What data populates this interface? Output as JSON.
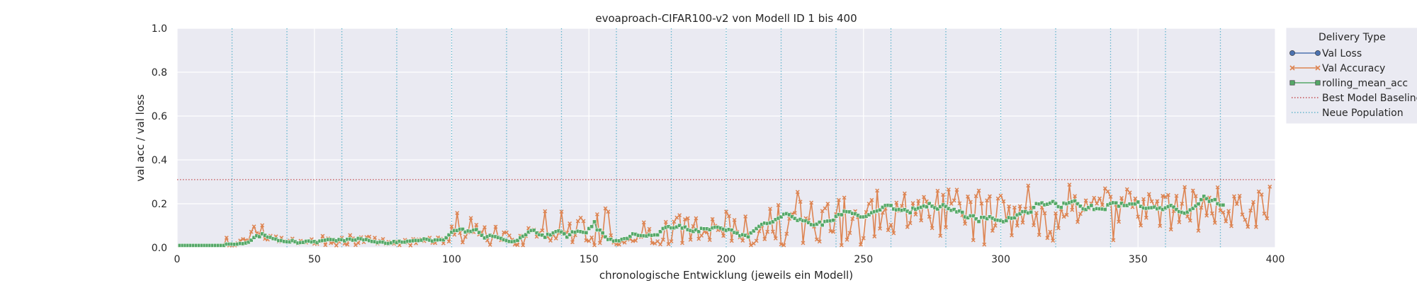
{
  "chart_data": {
    "type": "line",
    "title": "evoaproach-CIFAR100-v2 von Modell ID 1 bis 400",
    "xlabel": "chronologische Entwicklung (jeweils ein Modell)",
    "ylabel": "val acc / val loss",
    "xlim": [
      0,
      400
    ],
    "ylim": [
      0,
      1.0
    ],
    "xticks": [
      0,
      50,
      100,
      150,
      200,
      250,
      300,
      350,
      400
    ],
    "yticks": [
      0.0,
      0.2,
      0.4,
      0.6,
      0.8,
      1.0
    ],
    "xtick_labels": [
      "0",
      "50",
      "100",
      "150",
      "200",
      "250",
      "300",
      "350",
      "400"
    ],
    "ytick_labels": [
      "0.0",
      "0.2",
      "0.4",
      "0.6",
      "0.8",
      "1.0"
    ],
    "grid": true,
    "legend_position": "outside-right",
    "legend": {
      "title": "Delivery Type",
      "entries": [
        "Val Loss",
        "Val Accuracy",
        "rolling_mean_acc",
        "Best Model Baseline",
        "Neue Population"
      ]
    },
    "colors": {
      "background": "#eaeaf2",
      "grid": "#ffffff",
      "val_loss": "#4c72b0",
      "val_accuracy": "#dd8452",
      "rolling_mean": "#55a868",
      "baseline": "#c44e52",
      "population": "#64b5cd"
    },
    "baseline_y": 0.31,
    "population_x": [
      20,
      40,
      60,
      80,
      100,
      120,
      140,
      160,
      180,
      200,
      220,
      240,
      260,
      280,
      300,
      320,
      340,
      360,
      380
    ],
    "series": [
      {
        "name": "Val Accuracy",
        "marker": "x",
        "x_start": 1,
        "x_step": 1,
        "values": [
          0.01,
          0.01,
          0.01,
          0.01,
          0.01,
          0.01,
          0.01,
          0.01,
          0.01,
          0.01,
          0.01,
          0.01,
          0.01,
          0.01,
          0.01,
          0.01,
          0.01,
          0.045,
          0.01,
          0.01,
          0.01,
          0.02,
          0.032,
          0.039,
          0.034,
          0.032,
          0.072,
          0.096,
          0.066,
          0.061,
          0.102,
          0.04,
          0.037,
          0.054,
          0.043,
          0.051,
          0.029,
          0.045,
          0.03,
          0.029,
          0.032,
          0.041,
          0.026,
          0.019,
          0.031,
          0.027,
          0.023,
          0.028,
          0.038,
          0.018,
          0.017,
          0.028,
          0.053,
          0.012,
          0.042,
          0.021,
          0.025,
          0.01,
          0.027,
          0.045,
          0.018,
          0.014,
          0.057,
          0.042,
          0.012,
          0.021,
          0.047,
          0.025,
          0.048,
          0.05,
          0.029,
          0.045,
          0.019,
          0.031,
          0.039,
          0.017,
          0.026,
          0.02,
          0.018,
          0.029,
          0.011,
          0.026,
          0.035,
          0.023,
          0.01,
          0.039,
          0.02,
          0.037,
          0.038,
          0.03,
          0.04,
          0.045,
          0.022,
          0.021,
          0.046,
          0.04,
          0.02,
          0.045,
          0.028,
          0.096,
          0.059,
          0.158,
          0.067,
          0.024,
          0.049,
          0.07,
          0.135,
          0.071,
          0.104,
          0.06,
          0.07,
          0.093,
          0.033,
          0.013,
          0.05,
          0.095,
          0.044,
          0.034,
          0.069,
          0.069,
          0.055,
          0.036,
          0.014,
          0.012,
          0.054,
          0.011,
          0.053,
          0.089,
          0.077,
          0.082,
          0.05,
          0.068,
          0.078,
          0.166,
          0.049,
          0.032,
          0.059,
          0.042,
          0.067,
          0.164,
          0.062,
          0.068,
          0.11,
          0.025,
          0.057,
          0.121,
          0.136,
          0.121,
          0.033,
          0.03,
          0.046,
          0.011,
          0.152,
          0.021,
          0.052,
          0.179,
          0.164,
          0.056,
          0.023,
          0.015,
          0.014,
          0.029,
          0.023,
          0.037,
          0.038,
          0.03,
          0.032,
          0.053,
          0.049,
          0.115,
          0.056,
          0.085,
          0.021,
          0.019,
          0.029,
          0.015,
          0.036,
          0.117,
          0.016,
          0.029,
          0.118,
          0.137,
          0.148,
          0.021,
          0.129,
          0.134,
          0.036,
          0.098,
          0.134,
          0.04,
          0.055,
          0.073,
          0.07,
          0.035,
          0.13,
          0.099,
          0.08,
          0.083,
          0.054,
          0.164,
          0.144,
          0.031,
          0.126,
          0.071,
          0.047,
          0.032,
          0.142,
          0.059,
          0.011,
          0.019,
          0.031,
          0.075,
          0.101,
          0.039,
          0.072,
          0.177,
          0.073,
          0.042,
          0.194,
          0.015,
          0.011,
          0.063,
          0.132,
          0.154,
          0.158,
          0.254,
          0.209,
          0.021,
          0.134,
          0.125,
          0.205,
          0.096,
          0.037,
          0.028,
          0.167,
          0.179,
          0.2,
          0.075,
          0.072,
          0.152,
          0.217,
          0.011,
          0.228,
          0.036,
          0.067,
          0.131,
          0.166,
          0.139,
          0.014,
          0.043,
          0.162,
          0.2,
          0.217,
          0.051,
          0.26,
          0.087,
          0.159,
          0.178,
          0.08,
          0.104,
          0.066,
          0.205,
          0.168,
          0.19,
          0.247,
          0.094,
          0.112,
          0.203,
          0.151,
          0.213,
          0.124,
          0.231,
          0.211,
          0.141,
          0.089,
          0.184,
          0.259,
          0.054,
          0.241,
          0.093,
          0.265,
          0.2,
          0.215,
          0.264,
          0.202,
          0.148,
          0.109,
          0.233,
          0.208,
          0.034,
          0.235,
          0.26,
          0.201,
          0.014,
          0.215,
          0.234,
          0.077,
          0.1,
          0.224,
          0.237,
          0.211,
          0.122,
          0.188,
          0.056,
          0.183,
          0.1,
          0.189,
          0.114,
          0.177,
          0.283,
          0.18,
          0.102,
          0.158,
          0.058,
          0.184,
          0.157,
          0.044,
          0.072,
          0.032,
          0.156,
          0.089,
          0.176,
          0.141,
          0.149,
          0.287,
          0.172,
          0.235,
          0.117,
          0.154,
          0.171,
          0.215,
          0.179,
          0.201,
          0.227,
          0.201,
          0.224,
          0.194,
          0.27,
          0.256,
          0.232,
          0.034,
          0.196,
          0.118,
          0.226,
          0.193,
          0.266,
          0.251,
          0.185,
          0.224,
          0.141,
          0.101,
          0.221,
          0.136,
          0.244,
          0.211,
          0.187,
          0.212,
          0.099,
          0.236,
          0.231,
          0.24,
          0.083,
          0.167,
          0.236,
          0.116,
          0.2,
          0.276,
          0.142,
          0.123,
          0.26,
          0.235,
          0.077,
          0.182,
          0.227,
          0.146,
          0.228,
          0.156,
          0.113,
          0.275,
          0.169,
          0.161,
          0.12,
          0.167,
          0.098,
          0.234,
          0.199,
          0.236,
          0.151,
          0.127,
          0.095,
          0.169,
          0.208,
          0.094,
          0.256,
          0.242,
          0.155,
          0.133,
          0.278
        ]
      },
      {
        "name": "rolling_mean_acc",
        "marker": "square",
        "x_start": 1,
        "x_step": 1,
        "values": [
          0.01,
          0.01,
          0.01,
          0.01,
          0.01,
          0.01,
          0.01,
          0.01,
          0.01,
          0.01,
          0.01,
          0.01,
          0.01,
          0.01,
          0.01,
          0.01,
          0.01,
          0.016,
          0.016,
          0.016,
          0.015,
          0.016,
          0.019,
          0.018,
          0.021,
          0.025,
          0.034,
          0.046,
          0.054,
          0.05,
          0.063,
          0.056,
          0.048,
          0.047,
          0.041,
          0.039,
          0.032,
          0.032,
          0.028,
          0.027,
          0.026,
          0.032,
          0.027,
          0.021,
          0.023,
          0.024,
          0.029,
          0.03,
          0.026,
          0.028,
          0.023,
          0.03,
          0.032,
          0.034,
          0.037,
          0.037,
          0.036,
          0.031,
          0.037,
          0.036,
          0.031,
          0.038,
          0.039,
          0.034,
          0.035,
          0.042,
          0.04,
          0.035,
          0.037,
          0.032,
          0.028,
          0.027,
          0.023,
          0.026,
          0.025,
          0.02,
          0.019,
          0.022,
          0.028,
          0.023,
          0.029,
          0.025,
          0.025,
          0.029,
          0.03,
          0.031,
          0.033,
          0.032,
          0.034,
          0.04,
          0.038,
          0.034,
          0.03,
          0.035,
          0.035,
          0.036,
          0.035,
          0.045,
          0.058,
          0.07,
          0.078,
          0.078,
          0.084,
          0.084,
          0.071,
          0.076,
          0.074,
          0.08,
          0.082,
          0.069,
          0.056,
          0.044,
          0.05,
          0.056,
          0.052,
          0.05,
          0.046,
          0.042,
          0.036,
          0.032,
          0.028,
          0.027,
          0.029,
          0.033,
          0.045,
          0.052,
          0.059,
          0.071,
          0.078,
          0.079,
          0.067,
          0.059,
          0.057,
          0.047,
          0.061,
          0.058,
          0.067,
          0.073,
          0.076,
          0.071,
          0.063,
          0.048,
          0.059,
          0.072,
          0.07,
          0.075,
          0.073,
          0.07,
          0.068,
          0.087,
          0.096,
          0.118,
          0.081,
          0.08,
          0.067,
          0.049,
          0.037,
          0.038,
          0.03,
          0.032,
          0.031,
          0.038,
          0.041,
          0.042,
          0.051,
          0.063,
          0.061,
          0.056,
          0.055,
          0.054,
          0.053,
          0.058,
          0.056,
          0.058,
          0.058,
          0.073,
          0.087,
          0.092,
          0.096,
          0.09,
          0.09,
          0.094,
          0.101,
          0.089,
          0.094,
          0.082,
          0.078,
          0.074,
          0.081,
          0.073,
          0.088,
          0.086,
          0.086,
          0.082,
          0.09,
          0.093,
          0.093,
          0.089,
          0.084,
          0.079,
          0.083,
          0.08,
          0.069,
          0.066,
          0.054,
          0.059,
          0.056,
          0.049,
          0.067,
          0.076,
          0.087,
          0.097,
          0.106,
          0.112,
          0.11,
          0.113,
          0.118,
          0.128,
          0.134,
          0.14,
          0.152,
          0.155,
          0.15,
          0.141,
          0.133,
          0.124,
          0.129,
          0.123,
          0.122,
          0.114,
          0.105,
          0.103,
          0.107,
          0.116,
          0.103,
          0.119,
          0.121,
          0.122,
          0.125,
          0.143,
          0.151,
          0.15,
          0.166,
          0.164,
          0.163,
          0.156,
          0.154,
          0.147,
          0.14,
          0.14,
          0.143,
          0.15,
          0.159,
          0.164,
          0.167,
          0.172,
          0.184,
          0.192,
          0.193,
          0.192,
          0.176,
          0.172,
          0.174,
          0.17,
          0.173,
          0.166,
          0.159,
          0.18,
          0.175,
          0.18,
          0.184,
          0.19,
          0.186,
          0.201,
          0.189,
          0.182,
          0.176,
          0.187,
          0.195,
          0.187,
          0.178,
          0.17,
          0.174,
          0.163,
          0.167,
          0.161,
          0.14,
          0.136,
          0.145,
          0.145,
          0.131,
          0.119,
          0.138,
          0.138,
          0.132,
          0.141,
          0.134,
          0.127,
          0.125,
          0.123,
          0.118,
          0.123,
          0.137,
          0.134,
          0.136,
          0.149,
          0.154,
          0.164,
          0.164,
          0.158,
          0.162,
          0.183,
          0.201,
          0.199,
          0.204,
          0.195,
          0.198,
          0.203,
          0.21,
          0.201,
          0.187,
          0.183,
          0.203,
          0.2,
          0.205,
          0.21,
          0.213,
          0.2,
          0.189,
          0.177,
          0.174,
          0.183,
          0.192,
          0.174,
          0.178,
          0.177,
          0.176,
          0.174,
          0.195,
          0.201,
          0.205,
          0.204,
          0.189,
          0.202,
          0.192,
          0.192,
          0.199,
          0.199,
          0.199,
          0.208,
          0.188,
          0.181,
          0.179,
          0.181,
          0.182,
          0.185,
          0.177,
          0.181,
          0.174,
          0.181,
          0.187,
          0.192,
          0.185,
          0.174,
          0.164,
          0.161,
          0.157,
          0.162,
          0.172,
          0.179,
          0.19,
          0.199,
          0.219,
          0.234,
          0.223,
          0.211,
          0.215,
          0.219,
          0.2,
          0.194,
          0.194
        ]
      }
    ]
  }
}
